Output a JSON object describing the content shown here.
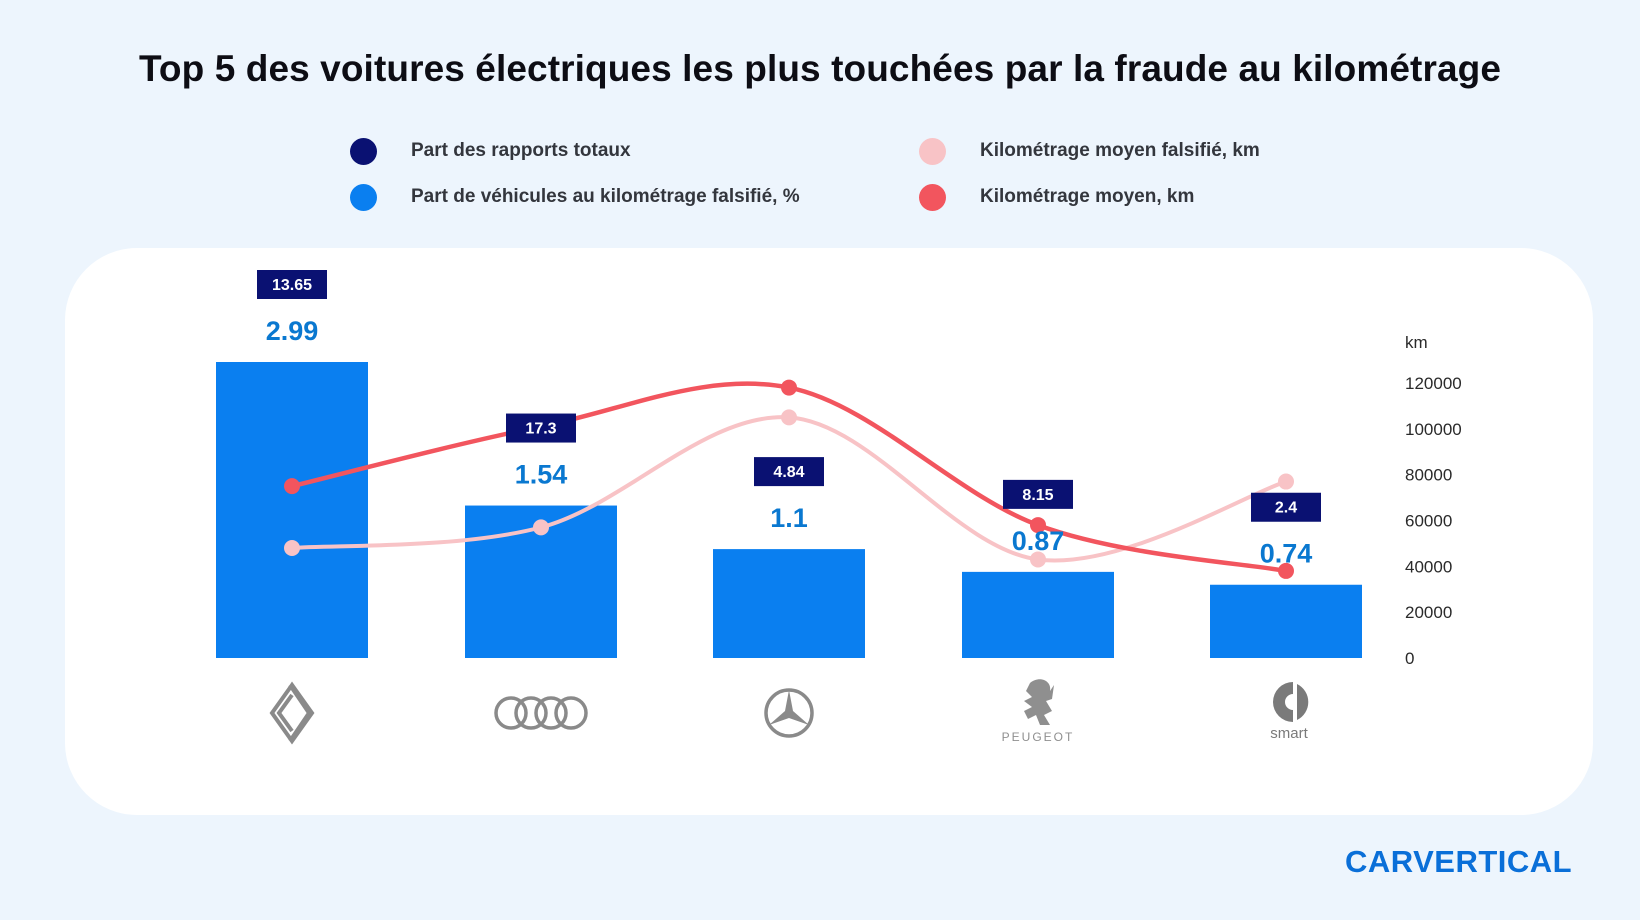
{
  "title": "Top 5 des voitures électriques les plus touchées par la fraude au kilométrage",
  "legend": [
    {
      "label": "Part des rapports totaux",
      "color": "#0a1172"
    },
    {
      "label": "Part de véhicules au kilométrage falsifié, %",
      "color": "#0a7ff0"
    },
    {
      "label": "Kilométrage moyen falsifié, km",
      "color": "#f8c3c6"
    },
    {
      "label": "Kilométrage moyen, km",
      "color": "#f2555e"
    }
  ],
  "brand_logo": "CARVERTICAL",
  "chart_data": {
    "type": "bar",
    "title": "Top 5 des voitures électriques les plus touchées par la fraude au kilométrage",
    "categories": [
      "Renault",
      "Audi",
      "Mercedes-Benz",
      "Peugeot",
      "smart"
    ],
    "category_logo_text": {
      "Peugeot": "PEUGEOT",
      "smart": "smart"
    },
    "y2_axis": {
      "label": "km",
      "ticks": [
        "0",
        "20000",
        "40000",
        "60000",
        "80000",
        "100000",
        "120000"
      ],
      "range": [
        0,
        120000
      ],
      "position": "right"
    },
    "grid": false,
    "series": [
      {
        "name": "Part des rapports totaux",
        "type": "label",
        "values": [
          13.65,
          17.3,
          4.84,
          8.15,
          2.4
        ],
        "labels": [
          "13.65",
          "17.3",
          "4.84",
          "8.15",
          "2.4"
        ],
        "color": "#0a1172"
      },
      {
        "name": "Part de véhicules au kilométrage falsifié, %",
        "type": "bar",
        "values": [
          2.99,
          1.54,
          1.1,
          0.87,
          0.74
        ],
        "labels": [
          "2.99",
          "1.54",
          "1.1",
          "0.87",
          "0.74"
        ],
        "color": "#0a7ff0"
      },
      {
        "name": "Kilométrage moyen falsifié, km",
        "type": "line",
        "axis": "y2",
        "values": [
          48000,
          57000,
          105000,
          43000,
          77000
        ],
        "color": "#f8c3c6"
      },
      {
        "name": "Kilométrage moyen, km",
        "type": "line",
        "axis": "y2",
        "values": [
          75000,
          101000,
          118000,
          58000,
          38000
        ],
        "color": "#f2555e"
      }
    ]
  }
}
